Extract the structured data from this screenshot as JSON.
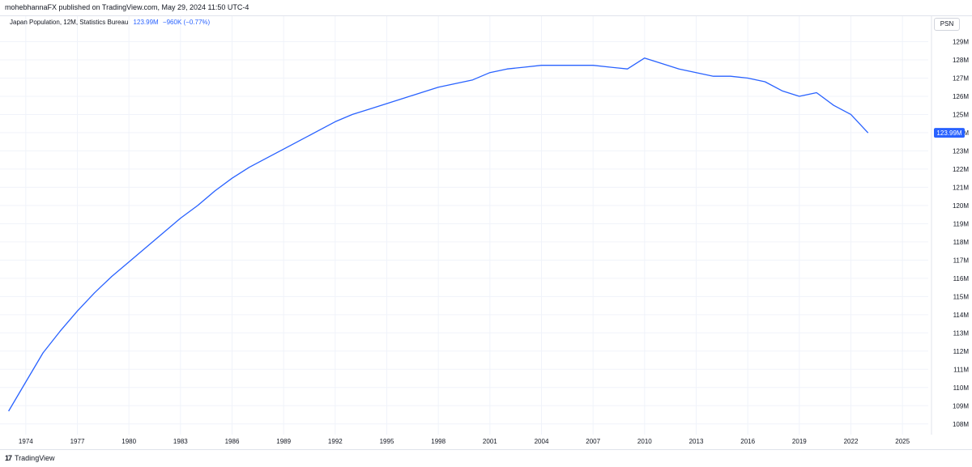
{
  "header": {
    "published_line": "mohebhannaFX published on TradingView.com, May 29, 2024 11:50 UTC-4"
  },
  "legend": {
    "name": "Japan Population, 12M, Statistics Bureau",
    "value": "123.99M",
    "change": "−960K (−0.77%)"
  },
  "scale_button": "PSN",
  "last_price_label": "123.99M",
  "footer": {
    "logo_glyph": "17",
    "brand": "TradingView"
  },
  "colors": {
    "line": "#2962ff",
    "grid": "#f0f3fa",
    "label_bg": "#2962ff"
  },
  "chart_data": {
    "type": "line",
    "title": "Japan Population, 12M, Statistics Bureau",
    "xlabel": "",
    "ylabel": "",
    "xlim": [
      1972.5,
      2026.5
    ],
    "ylim": [
      107.5,
      129.6
    ],
    "grid": true,
    "x_ticks": [
      1974,
      1977,
      1980,
      1983,
      1986,
      1989,
      1992,
      1995,
      1998,
      2001,
      2004,
      2007,
      2010,
      2013,
      2016,
      2019,
      2022,
      2025
    ],
    "y_ticks": [
      108,
      109,
      110,
      111,
      112,
      113,
      114,
      115,
      116,
      117,
      118,
      119,
      120,
      121,
      122,
      123,
      124,
      125,
      126,
      127,
      128,
      129
    ],
    "y_tick_suffix": "M",
    "series": [
      {
        "x": [
          1973,
          1974,
          1975,
          1976,
          1977,
          1978,
          1979,
          1980,
          1981,
          1982,
          1983,
          1984,
          1985,
          1986,
          1987,
          1988,
          1989,
          1990,
          1991,
          1992,
          1993,
          1994,
          1995,
          1996,
          1997,
          1998,
          1999,
          2000,
          2001,
          2002,
          2003,
          2004,
          2005,
          2006,
          2007,
          2008,
          2009,
          2010,
          2011,
          2012,
          2013,
          2014,
          2015,
          2016,
          2017,
          2018,
          2019,
          2020,
          2021,
          2022,
          2023
        ],
        "values": [
          108.7,
          110.3,
          111.9,
          113.1,
          114.2,
          115.2,
          116.1,
          116.9,
          117.7,
          118.5,
          119.3,
          120.0,
          120.8,
          121.5,
          122.1,
          122.6,
          123.1,
          123.6,
          124.1,
          124.6,
          125.0,
          125.3,
          125.6,
          125.9,
          126.2,
          126.5,
          126.7,
          126.9,
          127.3,
          127.5,
          127.6,
          127.7,
          127.7,
          127.7,
          127.7,
          127.6,
          127.5,
          128.1,
          127.8,
          127.5,
          127.3,
          127.1,
          127.1,
          127.0,
          126.8,
          126.3,
          126.0,
          126.2,
          125.5,
          125.0,
          123.99
        ]
      }
    ]
  }
}
